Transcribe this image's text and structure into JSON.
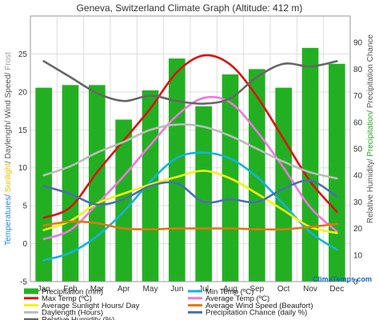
{
  "chart_data": {
    "type": "bar",
    "title": "Geneva, Switzerland Climate Graph (Altitude: 412 m)",
    "categories": [
      "Jan",
      "Feb",
      "Mar",
      "Apr",
      "May",
      "Jun",
      "Jul",
      "Aug",
      "Sep",
      "Oct",
      "Nov",
      "Dec"
    ],
    "left_axis": {
      "ylim": [
        -5,
        30
      ],
      "ticks": [
        -5,
        0,
        5,
        10,
        15,
        20,
        25
      ],
      "label_parts": [
        {
          "text": "Temperatures",
          "color": "#1e88e5"
        },
        {
          "text": "/ ",
          "color": "#555555"
        },
        {
          "text": "Sunlight",
          "color": "#e6c000"
        },
        {
          "text": "/ Daylength/ Wind Speed/ ",
          "color": "#555555"
        },
        {
          "text": "Frost",
          "color": "#9e9e9e"
        }
      ]
    },
    "right_axis": {
      "ylim": [
        0,
        100
      ],
      "ticks": [
        0,
        10,
        20,
        30,
        40,
        50,
        60,
        70,
        80,
        90
      ],
      "label_parts": [
        {
          "text": "Relative Humidity/ ",
          "color": "#555555"
        },
        {
          "text": "Precipitation",
          "color": "#2e9e2e"
        },
        {
          "text": "/ Precipitation Chance",
          "color": "#555555"
        }
      ]
    },
    "grid": true,
    "legend_position": "bottom",
    "brand": "ClimaTemps.com",
    "series": [
      {
        "name": "Precipitation (mm)",
        "kind": "bar",
        "axis": "right",
        "color": "#22b022",
        "values": [
          73,
          74,
          74,
          61,
          72,
          84,
          66,
          78,
          80,
          73,
          88,
          82
        ]
      },
      {
        "name": "Min Temp (ºC)",
        "kind": "line",
        "axis": "left",
        "color": "#17b0e0",
        "values": [
          -2.2,
          -1.2,
          1.0,
          4.2,
          8.2,
          11.3,
          12.0,
          11.2,
          8.8,
          5.2,
          1.5,
          -0.8
        ]
      },
      {
        "name": "Max Temp (ºC)",
        "kind": "line",
        "axis": "left",
        "color": "#dd1111",
        "values": [
          3.4,
          4.8,
          9.4,
          13.6,
          17.8,
          22.6,
          24.8,
          23.6,
          19.4,
          13.8,
          8.2,
          4.2
        ]
      },
      {
        "name": "Average Temp (ºC)",
        "kind": "line",
        "axis": "left",
        "color": "#ee77dd",
        "values": [
          0.6,
          1.8,
          5.2,
          8.9,
          13.0,
          16.9,
          19.2,
          18.6,
          14.8,
          10.0,
          4.8,
          1.6
        ]
      },
      {
        "name": "Average Sunlight Hours/ Day",
        "kind": "line",
        "axis": "left",
        "color": "#f2f20c",
        "values": [
          1.8,
          3.0,
          5.3,
          6.6,
          7.8,
          8.8,
          9.6,
          8.6,
          6.6,
          4.4,
          2.2,
          1.4
        ]
      },
      {
        "name": "Average Wind Speed (Beaufort)",
        "kind": "line",
        "axis": "left",
        "color": "#e07810",
        "values": [
          2.4,
          2.9,
          2.7,
          2.0,
          1.9,
          2.0,
          2.0,
          2.0,
          1.9,
          1.9,
          2.2,
          2.6
        ]
      },
      {
        "name": "Daylength (Hours)",
        "kind": "line",
        "axis": "left",
        "color": "#bbbbbb",
        "values": [
          9.0,
          10.2,
          12.0,
          13.4,
          15.0,
          15.7,
          15.4,
          14.2,
          12.5,
          10.8,
          9.4,
          8.6
        ]
      },
      {
        "name": "Precipitation Chance (daily %)",
        "kind": "line",
        "axis": "right",
        "color": "#4a6fb0",
        "values": [
          36,
          33,
          29,
          31,
          36,
          37,
          30,
          31,
          30,
          35,
          38,
          32
        ]
      },
      {
        "name": "Relative Humidity (%)",
        "kind": "line",
        "axis": "right",
        "color": "#666666",
        "values": [
          83,
          77,
          71,
          68,
          70,
          68,
          67,
          69,
          77,
          82,
          81,
          83
        ]
      }
    ]
  }
}
